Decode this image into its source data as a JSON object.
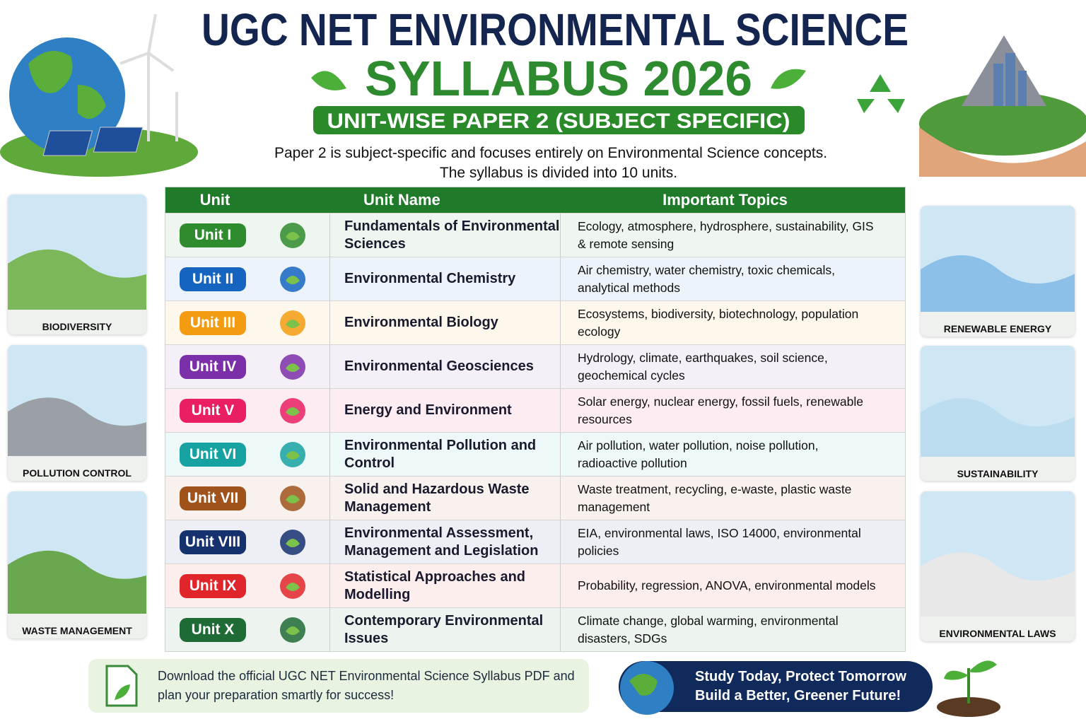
{
  "header": {
    "title": "UGC NET ENVIRONMENTAL SCIENCE",
    "title_year": "SYLLABUS 2026",
    "badge": "UNIT-WISE PAPER 2 (SUBJECT SPECIFIC)",
    "intro": [
      "Paper 2 is subject-specific and focuses entirely on Environmental Science concepts.",
      "The syllabus is divided into 10 units."
    ]
  },
  "table": {
    "columns": [
      "Unit",
      "Unit Name",
      "Important Topics"
    ],
    "rows": [
      {
        "unit": "Unit I",
        "name": "Fundamentals of Environmental Sciences",
        "topics": "Ecology, atmosphere, hydrosphere, sustainability, GIS & remote sensing",
        "color": "#2e8b2e"
      },
      {
        "unit": "Unit II",
        "name": "Environmental Chemistry",
        "topics": "Air chemistry, water chemistry, toxic chemicals, analytical methods",
        "color": "#1565c0"
      },
      {
        "unit": "Unit III",
        "name": "Environmental Biology",
        "topics": "Ecosystems, biodiversity, biotechnology, population ecology",
        "color": "#f39c12"
      },
      {
        "unit": "Unit IV",
        "name": "Environmental Geosciences",
        "topics": "Hydrology, climate, earthquakes, soil science, geochemical cycles",
        "color": "#7b2fa8"
      },
      {
        "unit": "Unit V",
        "name": "Energy and Environment",
        "topics": "Solar energy, nuclear energy, fossil fuels, renewable resources",
        "color": "#e91e63"
      },
      {
        "unit": "Unit VI",
        "name": "Environmental Pollution and Control",
        "topics": "Air pollution, water pollution, noise pollution, radioactive pollution",
        "color": "#17a2a2"
      },
      {
        "unit": "Unit VII",
        "name": "Solid and Hazardous Waste Management",
        "topics": "Waste treatment, recycling, e-waste, plastic waste management",
        "color": "#a0521b"
      },
      {
        "unit": "Unit VIII",
        "name": "Environmental Assessment, Management and Legislation",
        "topics": "EIA, environmental laws, ISO 14000, environmental policies",
        "color": "#15316e"
      },
      {
        "unit": "Unit IX",
        "name": "Statistical Approaches and Modelling",
        "topics": "Probability, regression, ANOVA, environmental models",
        "color": "#e0262b"
      },
      {
        "unit": "Unit X",
        "name": "Contemporary Environmental Issues",
        "topics": "Climate change, global warming, environmental disasters, SDGs",
        "color": "#1f6b35"
      }
    ]
  },
  "left_panels": [
    "BIODIVERSITY",
    "POLLUTION CONTROL",
    "WASTE MANAGEMENT"
  ],
  "right_panels": [
    "RENEWABLE ENERGY",
    "SUSTAINABILITY",
    "ENVIRONMENTAL LAWS"
  ],
  "footer": {
    "download": "Download the official UGC NET Environmental Science Syllabus PDF and plan your preparation smartly for success!",
    "slogan": [
      "Study Today, Protect Tomorrow",
      "Build a Better, Greener Future!"
    ]
  }
}
